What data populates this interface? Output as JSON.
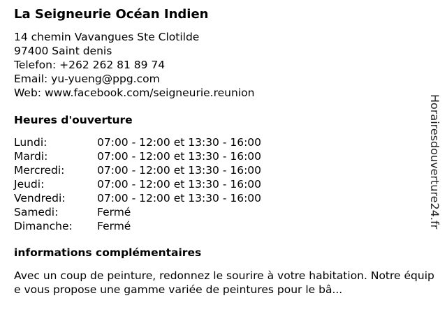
{
  "business": {
    "name": "La Seigneurie Océan Indien",
    "street": "14 chemin Vavangues Ste Clotilde",
    "city": "97400 Saint denis",
    "phone": "Telefon: +262 262 81 89 74",
    "email": "Email: yu-yueng@ppg.com",
    "web": "Web: www.facebook.com/seigneurie.reunion"
  },
  "hours": {
    "heading": "Heures d'ouverture",
    "rows": [
      {
        "day": "Lundi:",
        "time": "07:00 - 12:00 et 13:30 - 16:00"
      },
      {
        "day": "Mardi:",
        "time": "07:00 - 12:00 et 13:30 - 16:00"
      },
      {
        "day": "Mercredi:",
        "time": "07:00 - 12:00 et 13:30 - 16:00"
      },
      {
        "day": "Jeudi:",
        "time": "07:00 - 12:00 et 13:30 - 16:00"
      },
      {
        "day": "Vendredi:",
        "time": "07:00 - 12:00 et 13:30 - 16:00"
      },
      {
        "day": "Samedi:",
        "time": "Fermé"
      },
      {
        "day": "Dimanche:",
        "time": "Fermé"
      }
    ]
  },
  "info": {
    "heading": "informations complémentaires",
    "text": "Avec un coup de peinture, redonnez le sourire à votre habitation. Notre équipe vous propose une gamme variée de peintures pour le bâ..."
  },
  "watermark": "Horairesdouverture24.fr"
}
